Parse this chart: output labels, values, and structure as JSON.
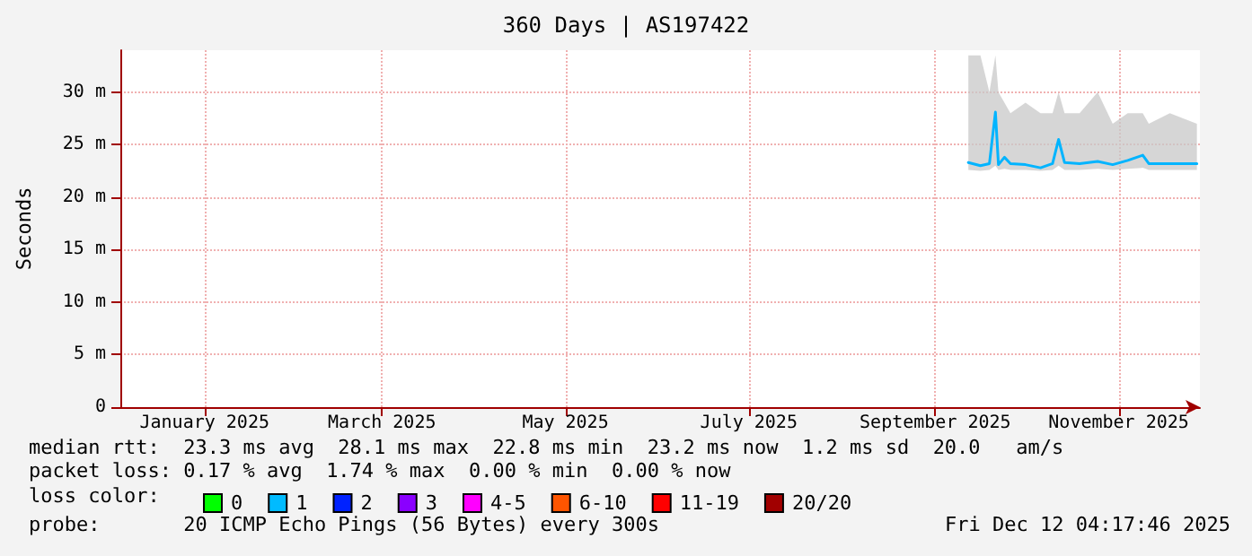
{
  "chart_data": {
    "type": "line",
    "title": "360 Days | AS197422",
    "ylabel": "Seconds",
    "xlim": [
      "2024-12-18",
      "2025-12-12"
    ],
    "xticks": [
      {
        "value": "2025-01-15",
        "label": "January 2025"
      },
      {
        "value": "2025-03-15",
        "label": "March 2025"
      },
      {
        "value": "2025-05-15",
        "label": "May 2025"
      },
      {
        "value": "2025-07-15",
        "label": "July 2025"
      },
      {
        "value": "2025-09-15",
        "label": "September 2025"
      },
      {
        "value": "2025-11-15",
        "label": "November 2025"
      }
    ],
    "ylim": [
      0,
      34
    ],
    "yticks": [
      0,
      {
        "value": 5,
        "label": "5 m"
      },
      {
        "value": 10,
        "label": "10 m"
      },
      {
        "value": 15,
        "label": "15 m"
      },
      {
        "value": 20,
        "label": "20 m"
      },
      {
        "value": 25,
        "label": "25 m"
      },
      {
        "value": 30,
        "label": "30 m"
      }
    ],
    "grid": true,
    "legend": "bottom left",
    "legend_title": "loss color:",
    "marker": "none",
    "line_style": "solid",
    "series": [
      {
        "color": "#00b4ff",
        "x": [
          "2025-09-26",
          "2025-09-30",
          "2025-10-03",
          "2025-10-05",
          "2025-10-06",
          "2025-10-08",
          "2025-10-10",
          "2025-10-15",
          "2025-10-20",
          "2025-10-24",
          "2025-10-26",
          "2025-10-28",
          "2025-11-02",
          "2025-11-08",
          "2025-11-13",
          "2025-11-18",
          "2025-11-23",
          "2025-11-25",
          "2025-12-02",
          "2025-12-11"
        ],
        "values": [
          23.3,
          23.0,
          23.2,
          28.1,
          23.1,
          23.8,
          23.2,
          23.1,
          22.8,
          23.2,
          25.5,
          23.3,
          23.2,
          23.4,
          23.1,
          23.5,
          24.0,
          23.2,
          23.2,
          23.2
        ],
        "lower": [
          22.6,
          22.5,
          22.6,
          23,
          22.6,
          22.7,
          22.6,
          22.6,
          22.5,
          22.6,
          23,
          22.6,
          22.6,
          22.7,
          22.6,
          22.7,
          22.8,
          22.6,
          22.6,
          22.6
        ],
        "upper": [
          33.5,
          33.5,
          30,
          33.5,
          30,
          29,
          28,
          29,
          28,
          28,
          30,
          28,
          28,
          30,
          27,
          28,
          28,
          27,
          28,
          27
        ]
      },
      {
        "name": "0",
        "color": "#00ff00"
      },
      {
        "name": "1",
        "color": "#00bbff"
      },
      {
        "name": "2",
        "color": "#0022ff"
      },
      {
        "name": "3",
        "color": "#8a00ff"
      },
      {
        "name": "4-5",
        "color": "#ff00ff"
      },
      {
        "name": "6-10",
        "color": "#ff5500"
      },
      {
        "name": "11-19",
        "color": "#ff0000"
      },
      {
        "name": "20/20",
        "color": "#a10000"
      }
    ],
    "annotations": [
      "median rtt:  23.3 ms avg  28.1 ms max  22.8 ms min  23.2 ms now  1.2 ms sd  20.0   am/s",
      "packet loss: 0.17 % avg  1.74 % max  0.00 % min  0.00 % now",
      "probe:       20 ICMP Echo Pings (56 Bytes) every 300s",
      "Fri Dec 12 04:17:46 2025"
    ]
  }
}
